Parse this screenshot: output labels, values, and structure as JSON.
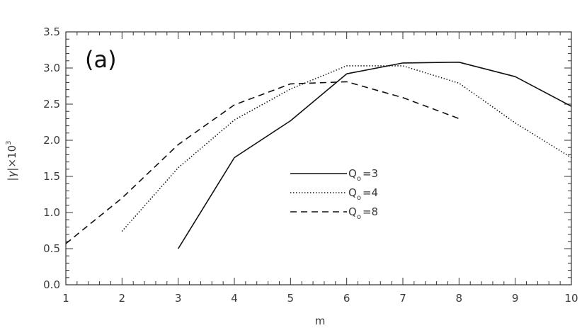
{
  "chart_data": {
    "type": "line",
    "title": "",
    "panel_label": "(a)",
    "xlabel": "m",
    "ylabel_parts": {
      "pre": "|",
      "gamma": "γ",
      "post": "|×10",
      "sup": "3"
    },
    "xlim": [
      1,
      10
    ],
    "ylim": [
      0.0,
      3.5
    ],
    "x_ticks": [
      "1",
      "2",
      "3",
      "4",
      "5",
      "6",
      "7",
      "8",
      "9",
      "10"
    ],
    "y_ticks": [
      "0.0",
      "0.5",
      "1.0",
      "1.5",
      "2.0",
      "2.5",
      "3.0",
      "3.5"
    ],
    "grid": false,
    "legend_position": "center",
    "series": [
      {
        "name": "Qₒ=3",
        "legend": {
          "q": "Q",
          "sub": "o",
          "eq": "=3"
        },
        "dash": "solid",
        "x": [
          3,
          4,
          5,
          6,
          7,
          8,
          9,
          10
        ],
        "y": [
          0.5,
          1.76,
          2.27,
          2.92,
          3.07,
          3.08,
          2.88,
          2.47
        ]
      },
      {
        "name": "Qₒ=4",
        "legend": {
          "q": "Q",
          "sub": "o",
          "eq": "=4"
        },
        "dash": "dotted",
        "x": [
          2,
          3,
          4,
          5,
          6,
          7,
          8,
          9,
          10
        ],
        "y": [
          0.74,
          1.62,
          2.28,
          2.71,
          3.03,
          3.03,
          2.79,
          2.24,
          1.76
        ]
      },
      {
        "name": "Qₒ=8",
        "legend": {
          "q": "Q",
          "sub": "o",
          "eq": "=8"
        },
        "dash": "dashed",
        "x": [
          1,
          2,
          3,
          4,
          5,
          6,
          7,
          8
        ],
        "y": [
          0.57,
          1.2,
          1.94,
          2.49,
          2.78,
          2.81,
          2.59,
          2.3
        ]
      }
    ]
  },
  "colors": {
    "axis": "#333333",
    "line": "#111111",
    "text": "#3a3a3a"
  }
}
